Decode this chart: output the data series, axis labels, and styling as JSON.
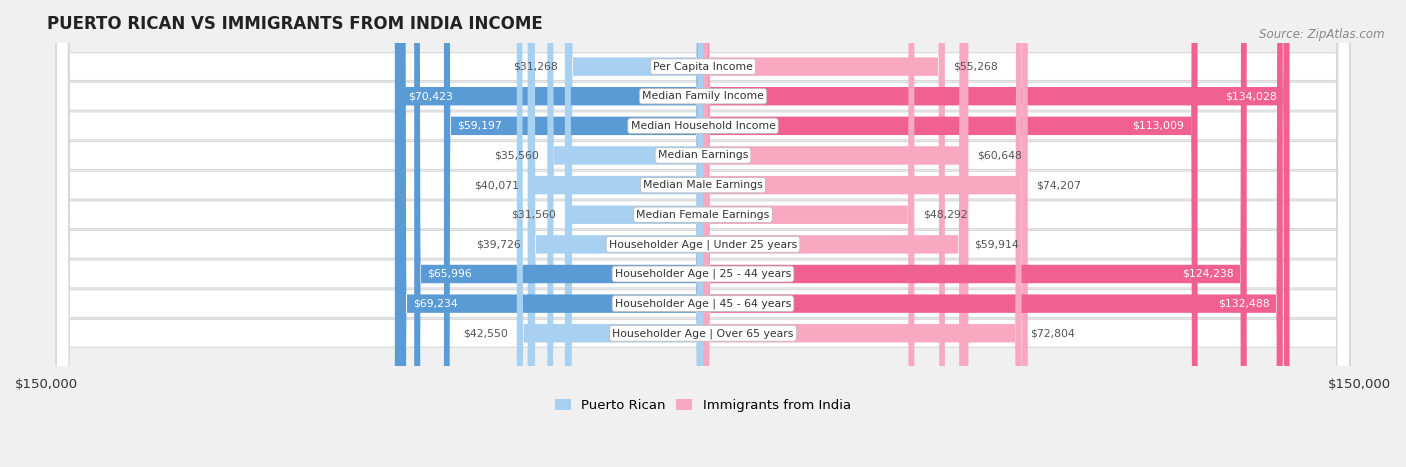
{
  "title": "PUERTO RICAN VS IMMIGRANTS FROM INDIA INCOME",
  "source": "Source: ZipAtlas.com",
  "categories": [
    "Per Capita Income",
    "Median Family Income",
    "Median Household Income",
    "Median Earnings",
    "Median Male Earnings",
    "Median Female Earnings",
    "Householder Age | Under 25 years",
    "Householder Age | 25 - 44 years",
    "Householder Age | 45 - 64 years",
    "Householder Age | Over 65 years"
  ],
  "puerto_rican": [
    31268,
    70423,
    59197,
    35560,
    40071,
    31560,
    39726,
    65996,
    69234,
    42550
  ],
  "india": [
    55268,
    134028,
    113009,
    60648,
    74207,
    48292,
    59914,
    124238,
    132488,
    72804
  ],
  "max_val": 150000,
  "bar_color_pr_light": "#A8D0F0",
  "bar_color_pr_dark": "#5B9BD5",
  "bar_color_india_light": "#F8A8C0",
  "bar_color_india_dark": "#F06090",
  "pr_dark_threshold": 55000,
  "india_dark_threshold": 100000,
  "bg_color": "#f0f0f0",
  "row_bg_color": "#ffffff",
  "row_border_color": "#d8d8d8",
  "legend_pr": "Puerto Rican",
  "legend_india": "Immigrants from India"
}
